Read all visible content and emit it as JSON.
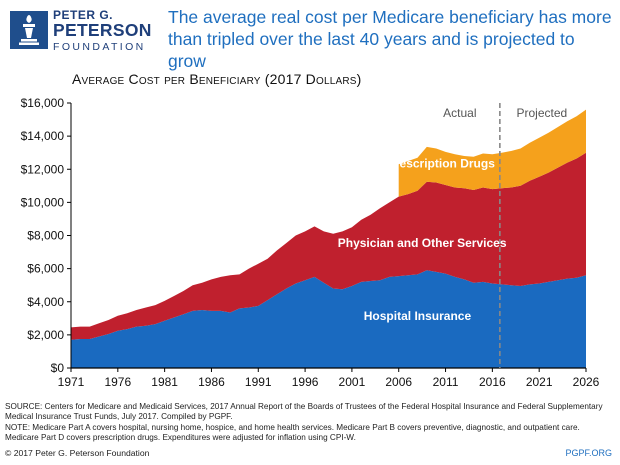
{
  "header": {
    "org_line1": "PETER G.",
    "org_line2": "PETERSON",
    "org_line3": "FOUNDATION",
    "headline": "The average real cost per Medicare beneficiary has more than tripled over the last 40 years and is projected to grow"
  },
  "chart_data": {
    "type": "area",
    "stacked": true,
    "title": "Average Cost per Beneficiary (2017 Dollars)",
    "xlabel": "",
    "ylabel": "",
    "xlim": [
      1971,
      2026
    ],
    "ylim": [
      0,
      16000
    ],
    "x_ticks": [
      1971,
      1976,
      1981,
      1986,
      1991,
      1996,
      2001,
      2006,
      2011,
      2016,
      2021,
      2026
    ],
    "y_ticks": [
      0,
      2000,
      4000,
      6000,
      8000,
      10000,
      12000,
      14000,
      16000
    ],
    "y_tick_labels": [
      "$0",
      "$2,000",
      "$4,000",
      "$6,000",
      "$8,000",
      "$10,000",
      "$12,000",
      "$14,000",
      "$16,000"
    ],
    "divider_year": 2016.8,
    "period_labels": [
      "Actual",
      "Projected"
    ],
    "x": [
      1971,
      1972,
      1973,
      1974,
      1975,
      1976,
      1977,
      1978,
      1979,
      1980,
      1981,
      1982,
      1983,
      1984,
      1985,
      1986,
      1987,
      1988,
      1989,
      1990,
      1991,
      1992,
      1993,
      1994,
      1995,
      1996,
      1997,
      1998,
      1999,
      2000,
      2001,
      2002,
      2003,
      2004,
      2005,
      2006,
      2007,
      2008,
      2009,
      2010,
      2011,
      2012,
      2013,
      2014,
      2015,
      2016,
      2017,
      2018,
      2019,
      2020,
      2021,
      2022,
      2023,
      2024,
      2025,
      2026
    ],
    "series": [
      {
        "name": "Hospital Insurance",
        "color": "#1a6ac0",
        "values": [
          1700,
          1750,
          1750,
          1900,
          2050,
          2250,
          2350,
          2500,
          2550,
          2650,
          2850,
          3050,
          3250,
          3450,
          3500,
          3450,
          3450,
          3350,
          3600,
          3650,
          3750,
          4100,
          4450,
          4800,
          5100,
          5300,
          5500,
          5150,
          4800,
          4750,
          4950,
          5200,
          5250,
          5300,
          5500,
          5550,
          5600,
          5650,
          5900,
          5800,
          5700,
          5500,
          5350,
          5150,
          5200,
          5100,
          5050,
          5000,
          4950,
          5050,
          5100,
          5200,
          5300,
          5400,
          5450,
          5600
        ]
      },
      {
        "name": "Physician and Other Services",
        "color": "#c0202e",
        "values": [
          750,
          750,
          750,
          800,
          850,
          900,
          950,
          1000,
          1100,
          1150,
          1200,
          1300,
          1400,
          1550,
          1650,
          1900,
          2050,
          2250,
          2050,
          2350,
          2550,
          2500,
          2650,
          2750,
          2900,
          2950,
          3050,
          3100,
          3300,
          3500,
          3550,
          3750,
          4000,
          4350,
          4500,
          4800,
          4900,
          5050,
          5350,
          5400,
          5350,
          5400,
          5500,
          5600,
          5700,
          5700,
          5800,
          5900,
          6050,
          6250,
          6450,
          6600,
          6800,
          7000,
          7200,
          7400
        ]
      },
      {
        "name": "Prescription Drugs",
        "color": "#f5a11c",
        "values": [
          0,
          0,
          0,
          0,
          0,
          0,
          0,
          0,
          0,
          0,
          0,
          0,
          0,
          0,
          0,
          0,
          0,
          0,
          0,
          0,
          0,
          0,
          0,
          0,
          0,
          0,
          0,
          0,
          0,
          0,
          0,
          0,
          0,
          0,
          0,
          1950,
          2000,
          2000,
          2100,
          2050,
          2000,
          2000,
          1950,
          2000,
          2050,
          2100,
          2150,
          2200,
          2250,
          2300,
          2350,
          2400,
          2450,
          2500,
          2550,
          2600
        ]
      }
    ],
    "series_labels": [
      "Prescription Drugs",
      "Physician and Other Services",
      "Hospital Insurance"
    ]
  },
  "footer": {
    "notes": [
      "SOURCE: Centers for Medicare and Medicaid Services, 2017 Annual Report of the Boards of Trustees of the Federal Hospital Insurance and Federal Supplementary Medical Insurance Trust Funds, July 2017. Compiled by PGPF.",
      "NOTE: Medicare Part A covers hospital, nursing home, hospice, and home health services. Medicare Part B covers preventive, diagnostic, and outpatient care. Medicare Part D covers prescription drugs. Expenditures were adjusted for inflation using CPI-W."
    ],
    "copyright": "© 2017 Peter G. Peterson Foundation",
    "site": "PGPF.ORG"
  },
  "colors": {
    "brand_blue": "#1f4e8c",
    "headline_blue": "#1f6fbf",
    "divider": "#888888"
  }
}
